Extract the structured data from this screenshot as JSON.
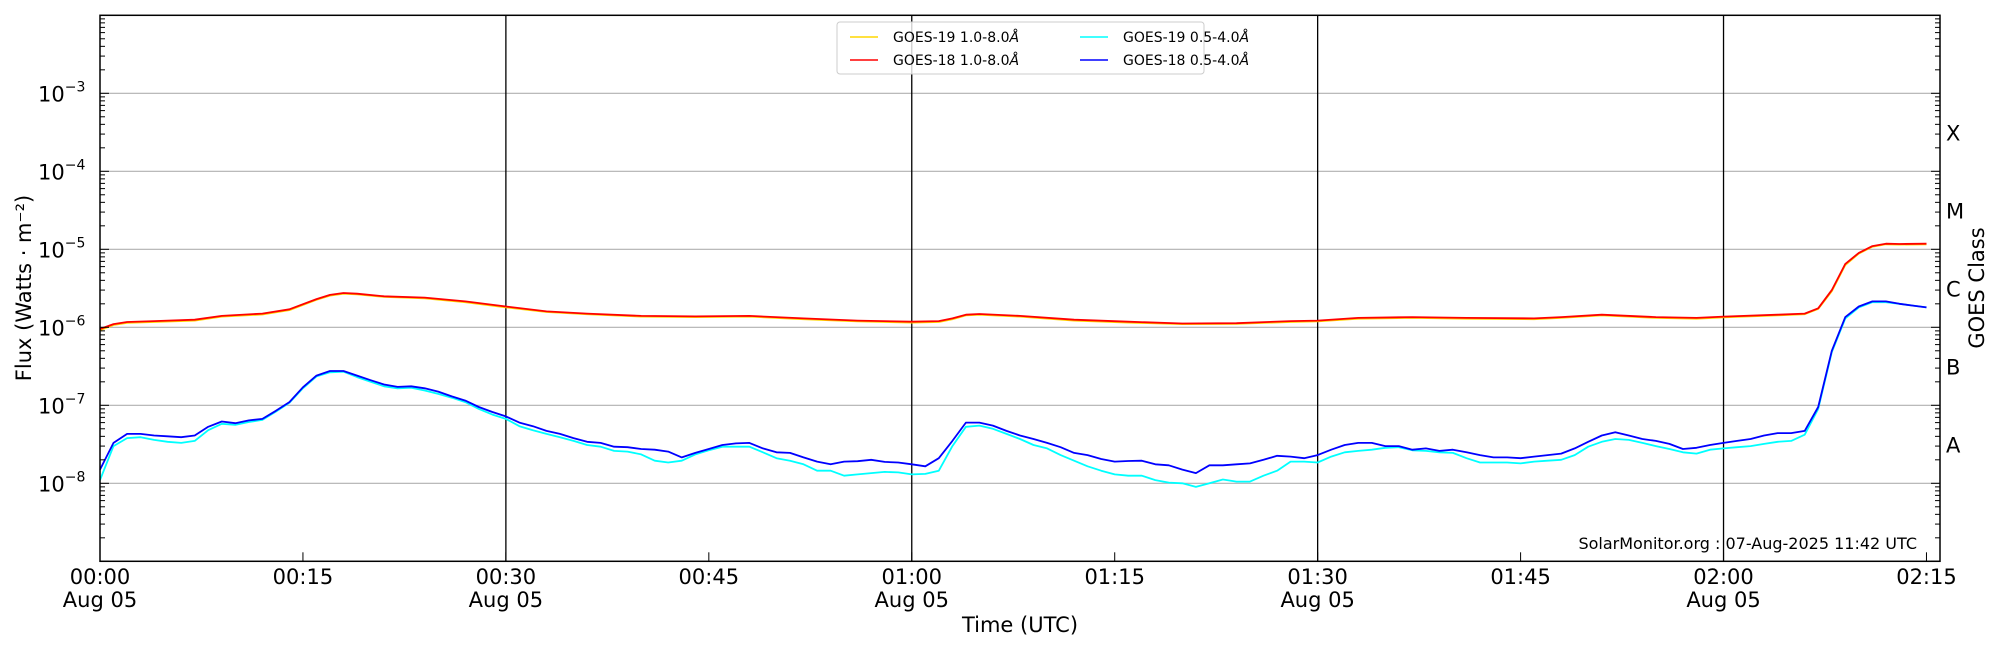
{
  "chart_data": {
    "type": "line",
    "title": "",
    "xlabel": "Time (UTC)",
    "ylabel": "Flux (Watts · m⁻²)",
    "y2label": "GOES Class",
    "yscale": "log",
    "ylim": [
      1e-09,
      0.01
    ],
    "xlim_minutes": [
      0,
      136
    ],
    "x_unit": "minutes since 2025-08-05 00:00 UTC",
    "grid": true,
    "legend_position": "top-center",
    "x_ticks": [
      {
        "minutes": 0,
        "time": "00:00",
        "date": "Aug 05"
      },
      {
        "minutes": 15,
        "time": "00:15",
        "date": ""
      },
      {
        "minutes": 30,
        "time": "00:30",
        "date": "Aug 05"
      },
      {
        "minutes": 45,
        "time": "00:45",
        "date": ""
      },
      {
        "minutes": 60,
        "time": "01:00",
        "date": "Aug 05"
      },
      {
        "minutes": 75,
        "time": "01:15",
        "date": ""
      },
      {
        "minutes": 90,
        "time": "01:30",
        "date": "Aug 05"
      },
      {
        "minutes": 105,
        "time": "01:45",
        "date": ""
      },
      {
        "minutes": 120,
        "time": "02:00",
        "date": "Aug 05"
      },
      {
        "minutes": 135,
        "time": "02:15",
        "date": ""
      }
    ],
    "vertical_lines_minutes": [
      30,
      60,
      90,
      120
    ],
    "y_ticks": [
      {
        "value": 0.001,
        "base": "10",
        "exp": "−3"
      },
      {
        "value": 0.0001,
        "base": "10",
        "exp": "−4"
      },
      {
        "value": 1e-05,
        "base": "10",
        "exp": "−5"
      },
      {
        "value": 1e-06,
        "base": "10",
        "exp": "−6"
      },
      {
        "value": 1e-07,
        "base": "10",
        "exp": "−7"
      },
      {
        "value": 1e-08,
        "base": "10",
        "exp": "−8"
      }
    ],
    "class_labels": [
      {
        "label": "X",
        "value": 0.000316
      },
      {
        "label": "M",
        "value": 3.16e-05
      },
      {
        "label": "C",
        "value": 3.16e-06
      },
      {
        "label": "B",
        "value": 3.16e-07
      },
      {
        "label": "A",
        "value": 3.16e-08
      }
    ],
    "annotation": "SolarMonitor.org : 07-Aug-2025 11:42 UTC",
    "series": [
      {
        "name": "GOES-19 1.0-8.0Å",
        "label": "GOES-19 1.0-8.0",
        "color": "#ffd700",
        "x": [
          0,
          1,
          2,
          4,
          7,
          9,
          12,
          14,
          16,
          17,
          18,
          19,
          21,
          24,
          27,
          30,
          33,
          36,
          40,
          44,
          48,
          52,
          56,
          60,
          62,
          63,
          64,
          65,
          68,
          72,
          76,
          80,
          84,
          88,
          90,
          93,
          97,
          101,
          106,
          108,
          111,
          115,
          118,
          120,
          124,
          126,
          127,
          128,
          129,
          130,
          131,
          132,
          133,
          135
        ],
        "values": [
          9.2e-07,
          1.07e-06,
          1.14e-06,
          1.17e-06,
          1.22e-06,
          1.37e-06,
          1.46e-06,
          1.66e-06,
          2.25e-06,
          2.55e-06,
          2.7e-06,
          2.65e-06,
          2.45e-06,
          2.35e-06,
          2.1e-06,
          1.8e-06,
          1.57e-06,
          1.47e-06,
          1.37e-06,
          1.35e-06,
          1.37e-06,
          1.27e-06,
          1.19e-06,
          1.15e-06,
          1.17e-06,
          1.27e-06,
          1.42e-06,
          1.45e-06,
          1.37e-06,
          1.22e-06,
          1.15e-06,
          1.1e-06,
          1.11e-06,
          1.17e-06,
          1.19e-06,
          1.29e-06,
          1.32e-06,
          1.29e-06,
          1.27e-06,
          1.32e-06,
          1.42e-06,
          1.32e-06,
          1.29e-06,
          1.34e-06,
          1.42e-06,
          1.47e-06,
          1.72e-06,
          2.9e-06,
          6.3e-06,
          8.8e-06,
          1.08e-05,
          1.16e-05,
          1.15e-05,
          1.16e-05
        ]
      },
      {
        "name": "GOES-18 1.0-8.0Å",
        "label": "GOES-18 1.0-8.0",
        "color": "#ff0000",
        "x": [
          0,
          1,
          2,
          4,
          7,
          9,
          12,
          14,
          16,
          17,
          18,
          19,
          21,
          24,
          27,
          30,
          33,
          36,
          40,
          44,
          48,
          52,
          56,
          60,
          62,
          63,
          64,
          65,
          68,
          72,
          76,
          80,
          84,
          88,
          90,
          93,
          97,
          101,
          106,
          108,
          111,
          115,
          118,
          120,
          124,
          126,
          127,
          128,
          129,
          130,
          131,
          132,
          133,
          135
        ],
        "values": [
          9.5e-07,
          1.1e-06,
          1.17e-06,
          1.2e-06,
          1.25e-06,
          1.4e-06,
          1.5e-06,
          1.7e-06,
          2.3e-06,
          2.6e-06,
          2.75e-06,
          2.7e-06,
          2.5e-06,
          2.4e-06,
          2.15e-06,
          1.85e-06,
          1.6e-06,
          1.5e-06,
          1.4e-06,
          1.38e-06,
          1.4e-06,
          1.3e-06,
          1.22e-06,
          1.18e-06,
          1.2e-06,
          1.3e-06,
          1.45e-06,
          1.48e-06,
          1.4e-06,
          1.25e-06,
          1.18e-06,
          1.12e-06,
          1.13e-06,
          1.2e-06,
          1.22e-06,
          1.32e-06,
          1.35e-06,
          1.32e-06,
          1.3e-06,
          1.35e-06,
          1.45e-06,
          1.35e-06,
          1.32e-06,
          1.37e-06,
          1.45e-06,
          1.5e-06,
          1.75e-06,
          3e-06,
          6.5e-06,
          9e-06,
          1.1e-05,
          1.18e-05,
          1.17e-05,
          1.18e-05
        ]
      },
      {
        "name": "GOES-19 0.5-4.0Å",
        "label": "GOES-19 0.5-4.0",
        "color": "#00ffff",
        "x_start": 0,
        "x_step": 1,
        "values": [
          1.1e-08,
          3e-08,
          3.8e-08,
          3.9e-08,
          3.6e-08,
          3.4e-08,
          3.3e-08,
          3.5e-08,
          4.8e-08,
          5.8e-08,
          5.6e-08,
          6.1e-08,
          6.5e-08,
          8.3e-08,
          1.08e-07,
          1.65e-07,
          2.35e-07,
          2.65e-07,
          2.7e-07,
          2.3e-07,
          2e-07,
          1.75e-07,
          1.65e-07,
          1.68e-07,
          1.55e-07,
          1.4e-07,
          1.25e-07,
          1.1e-07,
          9e-08,
          7.6e-08,
          6.7e-08,
          5.4e-08,
          4.8e-08,
          4.3e-08,
          3.9e-08,
          3.5e-08,
          3.1e-08,
          2.95e-08,
          2.6e-08,
          2.55e-08,
          2.35e-08,
          1.95e-08,
          1.85e-08,
          1.95e-08,
          2.35e-08,
          2.65e-08,
          2.95e-08,
          2.95e-08,
          2.95e-08,
          2.5e-08,
          2.1e-08,
          1.95e-08,
          1.75e-08,
          1.45e-08,
          1.45e-08,
          1.25e-08,
          1.3e-08,
          1.35e-08,
          1.4e-08,
          1.38e-08,
          1.3e-08,
          1.32e-08,
          1.45e-08,
          3e-08,
          5.3e-08,
          5.5e-08,
          5e-08,
          4.3e-08,
          3.7e-08,
          3.1e-08,
          2.8e-08,
          2.3e-08,
          1.95e-08,
          1.65e-08,
          1.45e-08,
          1.3e-08,
          1.25e-08,
          1.25e-08,
          1.1e-08,
          1.02e-08,
          1e-08,
          9e-09,
          1e-08,
          1.12e-08,
          1.05e-08,
          1.05e-08,
          1.25e-08,
          1.45e-08,
          1.9e-08,
          1.9e-08,
          1.85e-08,
          2.2e-08,
          2.5e-08,
          2.6e-08,
          2.7e-08,
          2.85e-08,
          2.9e-08,
          2.65e-08,
          2.6e-08,
          2.5e-08,
          2.45e-08,
          2.1e-08,
          1.85e-08,
          1.85e-08,
          1.85e-08,
          1.8e-08,
          1.9e-08,
          1.95e-08,
          2e-08,
          2.3e-08,
          2.95e-08,
          3.4e-08,
          3.7e-08,
          3.6e-08,
          3.3e-08,
          3e-08,
          2.75e-08,
          2.5e-08,
          2.4e-08,
          2.7e-08,
          2.8e-08,
          2.9e-08,
          3e-08,
          3.2e-08,
          3.4e-08,
          3.5e-08,
          4.2e-08,
          9e-08,
          4.8e-07,
          1.3e-06,
          1.8e-06,
          2.1e-06,
          2.1e-06,
          2e-06,
          1.9e-06,
          1.8e-06
        ]
      },
      {
        "name": "GOES-18 0.5-4.0Å",
        "label": "GOES-18 0.5-4.0",
        "color": "#0000ff",
        "x_start": 0,
        "x_step": 1,
        "values": [
          1.5e-08,
          3.3e-08,
          4.3e-08,
          4.3e-08,
          4.1e-08,
          4e-08,
          3.9e-08,
          4.1e-08,
          5.3e-08,
          6.2e-08,
          5.9e-08,
          6.4e-08,
          6.7e-08,
          8.5e-08,
          1.1e-07,
          1.7e-07,
          2.4e-07,
          2.75e-07,
          2.75e-07,
          2.4e-07,
          2.1e-07,
          1.85e-07,
          1.72e-07,
          1.75e-07,
          1.65e-07,
          1.5e-07,
          1.3e-07,
          1.15e-07,
          9.5e-08,
          8.2e-08,
          7.2e-08,
          6e-08,
          5.4e-08,
          4.7e-08,
          4.3e-08,
          3.8e-08,
          3.4e-08,
          3.3e-08,
          2.95e-08,
          2.9e-08,
          2.75e-08,
          2.7e-08,
          2.55e-08,
          2.15e-08,
          2.45e-08,
          2.75e-08,
          3.1e-08,
          3.25e-08,
          3.3e-08,
          2.8e-08,
          2.5e-08,
          2.45e-08,
          2.15e-08,
          1.9e-08,
          1.75e-08,
          1.9e-08,
          1.92e-08,
          2e-08,
          1.88e-08,
          1.85e-08,
          1.75e-08,
          1.65e-08,
          2.1e-08,
          3.5e-08,
          6e-08,
          6e-08,
          5.5e-08,
          4.7e-08,
          4.1e-08,
          3.7e-08,
          3.3e-08,
          2.9e-08,
          2.45e-08,
          2.3e-08,
          2.05e-08,
          1.9e-08,
          1.93e-08,
          1.95e-08,
          1.75e-08,
          1.7e-08,
          1.5e-08,
          1.35e-08,
          1.7e-08,
          1.7e-08,
          1.75e-08,
          1.8e-08,
          2e-08,
          2.25e-08,
          2.2e-08,
          2.1e-08,
          2.3e-08,
          2.7e-08,
          3.1e-08,
          3.3e-08,
          3.3e-08,
          3e-08,
          3e-08,
          2.7e-08,
          2.8e-08,
          2.6e-08,
          2.7e-08,
          2.5e-08,
          2.3e-08,
          2.15e-08,
          2.15e-08,
          2.1e-08,
          2.2e-08,
          2.3e-08,
          2.4e-08,
          2.8e-08,
          3.4e-08,
          4.1e-08,
          4.5e-08,
          4.1e-08,
          3.7e-08,
          3.5e-08,
          3.2e-08,
          2.75e-08,
          2.85e-08,
          3.1e-08,
          3.3e-08,
          3.5e-08,
          3.7e-08,
          4.1e-08,
          4.4e-08,
          4.4e-08,
          4.7e-08,
          9.5e-08,
          5e-07,
          1.35e-06,
          1.85e-06,
          2.15e-06,
          2.15e-06,
          2e-06,
          1.9e-06,
          1.8e-06
        ]
      }
    ]
  },
  "legend": {
    "unit_symbol": "Å"
  }
}
